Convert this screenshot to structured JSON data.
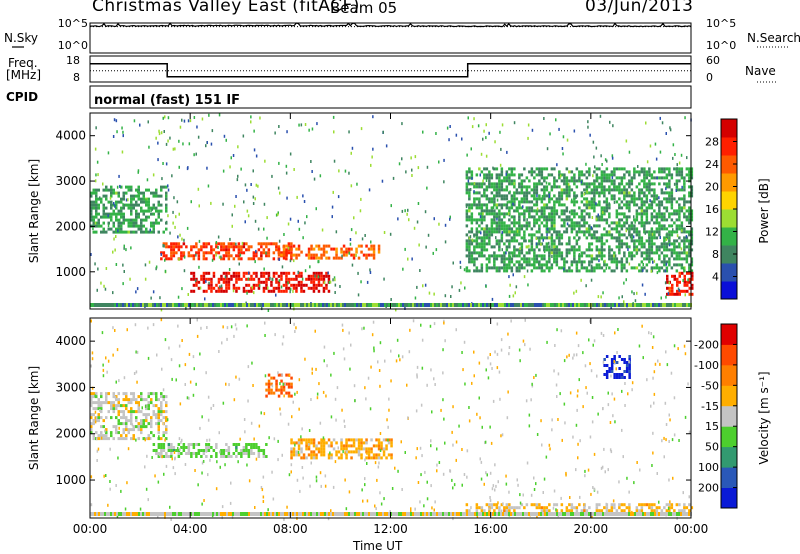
{
  "header": {
    "title": "Christmas Valley East (fitACF)",
    "beam": "Beam 05",
    "date": "03/Jun/2013"
  },
  "side_labels": {
    "nsky": "N.Sky",
    "nsearch": "N.Search",
    "freq": "Freq.",
    "freq_unit": "[MHz]",
    "nave": "Nave",
    "cpid": "CPID",
    "mode": "normal (fast) 151 IF"
  },
  "chart_data": [
    {
      "type": "line",
      "panel": "noise",
      "series": [
        {
          "x": [
            "00:00",
            "02:00",
            "04:00",
            "06:00",
            "08:00",
            "10:00",
            "12:00",
            "14:00",
            "16:00",
            "18:00",
            "20:00",
            "22:00",
            "24:00"
          ],
          "values": [
            30000,
            33000,
            36000,
            38000,
            37000,
            34000,
            32000,
            30000,
            29000,
            30000,
            31000,
            30000,
            30000
          ]
        },
        {
          "x": [
            "00:00",
            "04:00",
            "08:00",
            "12:00",
            "16:00",
            "20:00",
            "24:00"
          ],
          "values": [
            25000,
            25000,
            25000,
            25000,
            25000,
            25000,
            25000
          ]
        }
      ],
      "ylim": [
        1,
        100000
      ],
      "y_log": true,
      "left_ticks": [
        "10^5",
        "10^0"
      ],
      "right_ticks": [
        "10^5",
        "10^0"
      ]
    },
    {
      "type": "line",
      "panel": "frequency",
      "series": [
        {
          "x": [
            "00:00",
            "03:05",
            "03:05",
            "15:05",
            "15:05",
            "24:00"
          ],
          "values": [
            15.0,
            15.0,
            10.0,
            10.0,
            15.0,
            15.0
          ]
        },
        {
          "x": [
            "00:00",
            "24:00"
          ],
          "values": [
            26,
            26
          ]
        }
      ],
      "left_ticks": [
        "18",
        "8"
      ],
      "right_ticks": [
        "60",
        "0"
      ]
    },
    {
      "type": "heatmap",
      "panel": "power",
      "ylabel": "Slant Range [km]",
      "ylim": [
        180,
        4500
      ],
      "yticks": [
        1000,
        2000,
        3000,
        4000
      ],
      "xlim": [
        "00:00",
        "24:00"
      ],
      "xticks": [
        "00:00",
        "04:00",
        "08:00",
        "12:00",
        "16:00",
        "20:00",
        "00:00"
      ],
      "colorbar": {
        "label": "Power [dB]",
        "ticks": [
          4,
          8,
          12,
          16,
          20,
          24,
          28
        ],
        "colors": [
          "#0a0fd8",
          "#2a50ae",
          "#3f8560",
          "#33b247",
          "#9cdd33",
          "#ffd400",
          "#ff9a00",
          "#ff5a00",
          "#ff1f00",
          "#d40000"
        ]
      },
      "features": [
        {
          "t_start": 0.0,
          "t_end": 3.0,
          "range_km": [
            1900,
            2900
          ],
          "dB": 10
        },
        {
          "t_start": 2.8,
          "t_end": 8.0,
          "range_km": [
            1300,
            1650
          ],
          "dB": 26
        },
        {
          "t_start": 4.0,
          "t_end": 9.5,
          "range_km": [
            600,
            1000
          ],
          "dB": 29
        },
        {
          "t_start": 7.5,
          "t_end": 11.5,
          "range_km": [
            1300,
            1600
          ],
          "dB": 24
        },
        {
          "t_start": 15.0,
          "t_end": 24.0,
          "range_km": [
            1000,
            3300
          ],
          "dB": 10
        },
        {
          "t_start": 23.0,
          "t_end": 24.0,
          "range_km": [
            500,
            1000
          ],
          "dB": 28
        }
      ]
    },
    {
      "type": "heatmap",
      "panel": "velocity",
      "ylabel": "Slant Range [km]",
      "xlabel": "Time UT",
      "ylim": [
        180,
        4500
      ],
      "yticks": [
        1000,
        2000,
        3000,
        4000
      ],
      "xlim": [
        "00:00",
        "24:00"
      ],
      "xticks": [
        "00:00",
        "04:00",
        "08:00",
        "12:00",
        "16:00",
        "20:00",
        "00:00"
      ],
      "colorbar": {
        "label": "Velocity [m s⁻¹]",
        "ticks": [
          200,
          100,
          50,
          15,
          -15,
          -50,
          -100,
          -200
        ],
        "colors": [
          "#0a1ad6",
          "#2a58b8",
          "#329a70",
          "#4dcf2e",
          "#c4c4c4",
          "#ffae00",
          "#ff7f00",
          "#ff4a00",
          "#e00000"
        ]
      },
      "features": [
        {
          "t_start": 0.0,
          "t_end": 3.0,
          "range_km": [
            1900,
            2900
          ],
          "m_s": 0
        },
        {
          "t_start": 2.5,
          "t_end": 7.0,
          "range_km": [
            1500,
            1800
          ],
          "m_s": 40
        },
        {
          "t_start": 8.0,
          "t_end": 12.0,
          "range_km": [
            1500,
            1900
          ],
          "m_s": -60
        },
        {
          "t_start": 7.0,
          "t_end": 8.0,
          "range_km": [
            2800,
            3300
          ],
          "m_s": -150
        },
        {
          "t_start": 20.5,
          "t_end": 21.5,
          "range_km": [
            3200,
            3700
          ],
          "m_s": 220
        },
        {
          "t_start": 15.0,
          "t_end": 24.0,
          "range_km": [
            300,
            500
          ],
          "m_s": -40
        }
      ]
    }
  ]
}
